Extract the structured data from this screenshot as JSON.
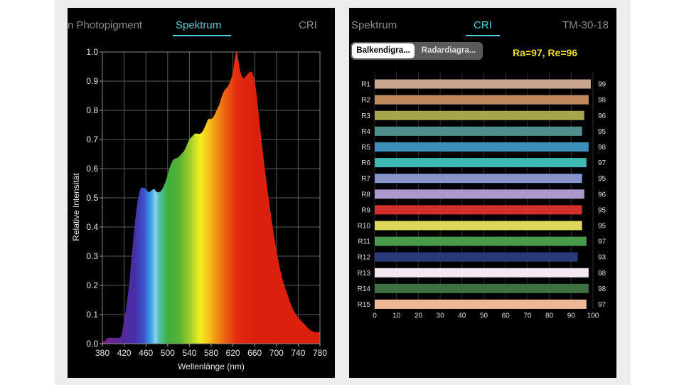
{
  "left_panel": {
    "tabs": [
      {
        "label": "n Photopigment",
        "active": false
      },
      {
        "label": "Spektrum",
        "active": true
      },
      {
        "label": "CRI",
        "active": false
      }
    ]
  },
  "right_panel": {
    "tabs": [
      {
        "label": "Spektrum",
        "active": false
      },
      {
        "label": "CRI",
        "active": true
      },
      {
        "label": "TM-30-18",
        "active": false
      }
    ],
    "segmented": {
      "bar_label": "Balkendigra...",
      "radar_label": "Radardiagra...",
      "selected": "bar"
    },
    "ra_text": "Ra=97, Re=96"
  },
  "colors": {
    "accent": "#4fd0dc",
    "ra_text": "#f0dd2c",
    "panel_background": "#000000"
  },
  "chart_data": [
    {
      "type": "area",
      "xlabel": "Wellenlänge (nm)",
      "ylabel": "Relative Intensität",
      "xlim": [
        380,
        780
      ],
      "ylim": [
        0,
        1.0
      ],
      "grid": true,
      "x_ticks": [
        380,
        420,
        460,
        500,
        540,
        580,
        620,
        660,
        700,
        740,
        780
      ],
      "y_ticks": [
        "0.0",
        "0.1",
        "0.2",
        "0.3",
        "0.4",
        "0.5",
        "0.6",
        "0.7",
        "0.8",
        "0.9",
        "1.0"
      ],
      "fill": "visible-spectrum gradient",
      "series": [
        {
          "x": [
            380,
            385,
            390,
            395,
            400,
            405,
            410,
            415,
            420,
            425,
            430,
            435,
            440,
            445,
            450,
            455,
            460,
            465,
            470,
            475,
            480,
            485,
            490,
            495,
            500,
            505,
            510,
            515,
            520,
            525,
            530,
            535,
            540,
            545,
            550,
            555,
            560,
            565,
            570,
            575,
            580,
            585,
            590,
            595,
            600,
            605,
            610,
            615,
            620,
            623,
            626,
            628,
            630,
            633,
            636,
            640,
            645,
            650,
            655,
            660,
            665,
            670,
            680,
            690,
            700,
            710,
            720,
            730,
            740,
            750,
            760,
            770,
            780
          ],
          "y": [
            0.01,
            0.01,
            0.02,
            0.02,
            0.02,
            0.02,
            0.02,
            0.03,
            0.08,
            0.14,
            0.22,
            0.32,
            0.42,
            0.49,
            0.53,
            0.535,
            0.53,
            0.52,
            0.525,
            0.53,
            0.52,
            0.52,
            0.53,
            0.55,
            0.58,
            0.61,
            0.63,
            0.635,
            0.64,
            0.65,
            0.66,
            0.68,
            0.7,
            0.71,
            0.72,
            0.72,
            0.72,
            0.73,
            0.75,
            0.77,
            0.77,
            0.78,
            0.8,
            0.82,
            0.85,
            0.87,
            0.88,
            0.9,
            0.93,
            0.97,
            1.0,
            0.99,
            0.97,
            0.94,
            0.92,
            0.91,
            0.92,
            0.93,
            0.93,
            0.9,
            0.83,
            0.74,
            0.58,
            0.44,
            0.32,
            0.23,
            0.17,
            0.12,
            0.09,
            0.07,
            0.05,
            0.04,
            0.04
          ]
        }
      ]
    },
    {
      "type": "bar",
      "orientation": "horizontal",
      "xlim": [
        0,
        100
      ],
      "x_ticks": [
        0,
        10,
        20,
        30,
        40,
        50,
        60,
        70,
        80,
        90,
        100
      ],
      "grid": true,
      "categories": [
        "R1",
        "R2",
        "R3",
        "R4",
        "R5",
        "R6",
        "R7",
        "R8",
        "R9",
        "R10",
        "R11",
        "R12",
        "R13",
        "R14",
        "R15"
      ],
      "values": [
        99,
        98,
        96,
        95,
        98,
        97,
        95,
        96,
        95,
        95,
        97,
        93,
        98,
        98,
        97
      ],
      "bar_colors": [
        "#c8a58e",
        "#c08a5e",
        "#a8a64a",
        "#4f8f8c",
        "#3b8fb8",
        "#3fb8b4",
        "#8694ca",
        "#ad97cc",
        "#d42e2e",
        "#dcd85a",
        "#4a9a4c",
        "#283a78",
        "#f2e6f0",
        "#3e7041",
        "#ecb896"
      ]
    }
  ]
}
